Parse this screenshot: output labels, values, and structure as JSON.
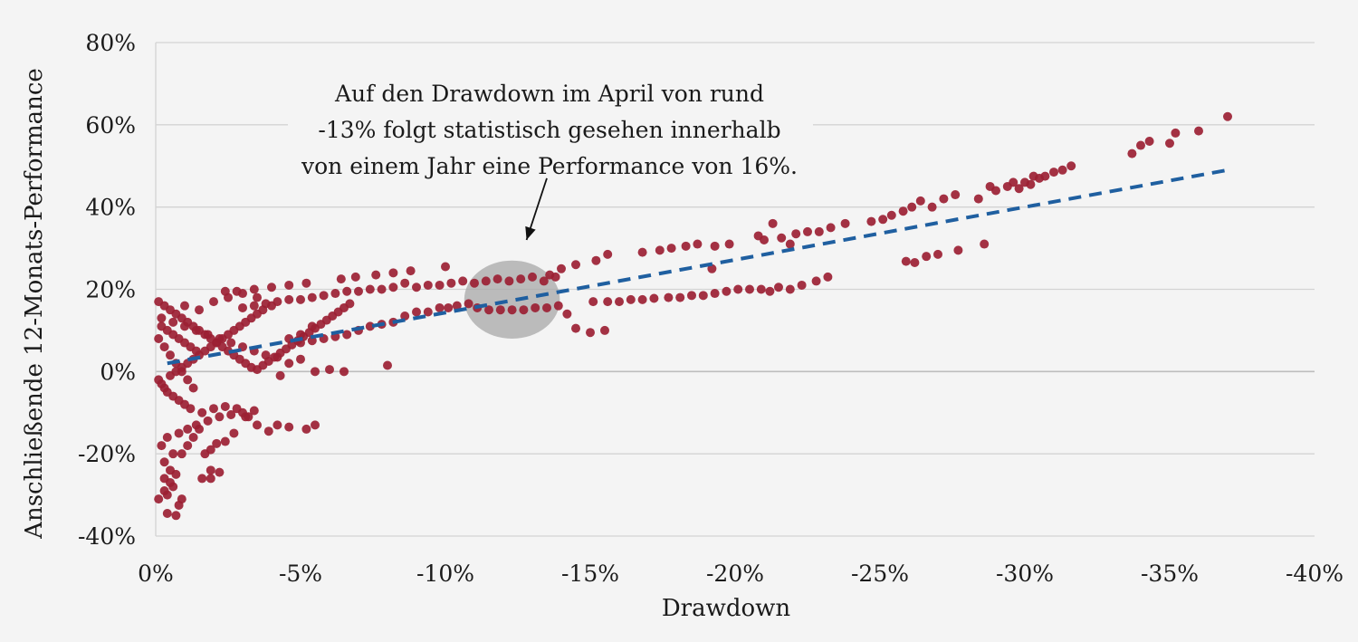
{
  "chart_data": {
    "type": "scatter",
    "xlabel": "Drawdown",
    "ylabel": "Anschließende 12-Monats-Performance",
    "xlim": [
      0,
      -40
    ],
    "ylim": [
      -40,
      80
    ],
    "x_ticks": [
      "0%",
      "-5%",
      "-10%",
      "-15%",
      "-20%",
      "-25%",
      "-30%",
      "-35%",
      "-40%"
    ],
    "y_ticks": [
      "80%",
      "60%",
      "40%",
      "20%",
      "0%",
      "-20%",
      "-40%"
    ],
    "grid": "horizontal",
    "point_color": "#9b1f33",
    "trend_color": "#1f5fa0",
    "highlight_color": "#a8a8a8",
    "trendline": {
      "x": [
        -0.4,
        -37
      ],
      "y": [
        2,
        49
      ]
    },
    "highlight": {
      "x_center": -12.3,
      "y_center": 17.5,
      "x_radius": 1.65,
      "y_radius": 9.5
    },
    "annotation": {
      "lines": [
        "Auf den Drawdown im April von rund",
        "-13% folgt statistisch gesehen innerhalb",
        "von einem Jahr eine Performance von 16%."
      ],
      "arrow_from": [
        -13.5,
        47
      ],
      "arrow_to": [
        -12.8,
        32
      ]
    },
    "series": [
      {
        "points": [
          [
            -37,
            62
          ],
          [
            -36,
            58.5
          ],
          [
            -35.2,
            58
          ],
          [
            -35,
            55.5
          ],
          [
            -34.3,
            56
          ],
          [
            -34,
            55
          ],
          [
            -33.7,
            53
          ],
          [
            -31.6,
            50
          ],
          [
            -31.3,
            49
          ],
          [
            -31,
            48.5
          ],
          [
            -30.7,
            47.5
          ],
          [
            -30.5,
            47
          ],
          [
            -30.3,
            47.5
          ],
          [
            -30.2,
            45.5
          ],
          [
            -30,
            46
          ],
          [
            -29.8,
            44.5
          ],
          [
            -29.6,
            46
          ],
          [
            -29.4,
            45
          ],
          [
            -29,
            44
          ],
          [
            -28.8,
            45
          ],
          [
            -28.4,
            42
          ],
          [
            -27.6,
            43
          ],
          [
            -27.2,
            42
          ],
          [
            -26.8,
            40
          ],
          [
            -26.4,
            41.5
          ],
          [
            -26.1,
            40
          ],
          [
            -25.8,
            39
          ],
          [
            -25.4,
            38
          ],
          [
            -25.1,
            37
          ],
          [
            -24.7,
            36.5
          ],
          [
            -23.8,
            36
          ],
          [
            -23.3,
            35
          ],
          [
            -22.9,
            34
          ],
          [
            -22.5,
            34
          ],
          [
            -22.1,
            33.5
          ],
          [
            -21.9,
            31
          ],
          [
            -21.6,
            32.5
          ],
          [
            -21.3,
            36
          ],
          [
            -21,
            32
          ],
          [
            -20.8,
            33
          ],
          [
            -28.6,
            31
          ],
          [
            -27.7,
            29.5
          ],
          [
            -27,
            28.5
          ],
          [
            -26.6,
            28
          ],
          [
            -26.2,
            26.5
          ],
          [
            -25.9,
            26.8
          ],
          [
            -23.2,
            23
          ],
          [
            -22.8,
            22
          ],
          [
            -22.3,
            21
          ],
          [
            -21.9,
            20
          ],
          [
            -21.5,
            20.5
          ],
          [
            -21.2,
            19.5
          ],
          [
            -20.9,
            20
          ],
          [
            -20.5,
            20
          ],
          [
            -20.1,
            20
          ],
          [
            -19.7,
            19.5
          ],
          [
            -19.3,
            19
          ],
          [
            -18.9,
            18.5
          ],
          [
            -18.5,
            18.5
          ],
          [
            -18.1,
            18
          ],
          [
            -17.7,
            18
          ],
          [
            -17.2,
            17.8
          ],
          [
            -16.8,
            17.5
          ],
          [
            -16.4,
            17.5
          ],
          [
            -16,
            17
          ],
          [
            -15.6,
            17
          ],
          [
            -15.1,
            17
          ],
          [
            -19.8,
            31
          ],
          [
            -19.3,
            30.5
          ],
          [
            -18.7,
            31
          ],
          [
            -18.3,
            30.5
          ],
          [
            -17.8,
            30
          ],
          [
            -17.4,
            29.5
          ],
          [
            -16.8,
            29
          ],
          [
            -19.2,
            25
          ],
          [
            -15.6,
            28.5
          ],
          [
            -15.2,
            27
          ],
          [
            -14.5,
            26
          ],
          [
            -14,
            25
          ],
          [
            -13.6,
            23.5
          ],
          [
            -15.5,
            10
          ],
          [
            -15,
            9.5
          ],
          [
            -14.5,
            10.5
          ],
          [
            -14.2,
            14
          ],
          [
            -13.9,
            16
          ],
          [
            -13.5,
            15.5
          ],
          [
            -13.1,
            15.5
          ],
          [
            -12.7,
            15
          ],
          [
            -12.3,
            15
          ],
          [
            -11.9,
            15
          ],
          [
            -11.5,
            15
          ],
          [
            -11.1,
            15.5
          ],
          [
            -10.8,
            16.5
          ],
          [
            -10.4,
            16
          ],
          [
            -10.1,
            15.5
          ],
          [
            -9.8,
            15.5
          ],
          [
            -9.4,
            14.5
          ],
          [
            -9,
            14.5
          ],
          [
            -8.6,
            13.5
          ],
          [
            -8.2,
            12
          ],
          [
            -7.8,
            11.5
          ],
          [
            -7.4,
            11
          ],
          [
            -7,
            10
          ],
          [
            -6.6,
            9
          ],
          [
            -6.2,
            8.5
          ],
          [
            -5.8,
            8
          ],
          [
            -5.4,
            7.5
          ],
          [
            -5,
            7
          ],
          [
            -13.8,
            23
          ],
          [
            -13.4,
            22
          ],
          [
            -13,
            23
          ],
          [
            -12.6,
            22.5
          ],
          [
            -12.2,
            22
          ],
          [
            -11.8,
            22.5
          ],
          [
            -11.4,
            22
          ],
          [
            -11,
            21.5
          ],
          [
            -10.6,
            22
          ],
          [
            -10.2,
            21.5
          ],
          [
            -9.8,
            21
          ],
          [
            -9.4,
            21
          ],
          [
            -9,
            20.5
          ],
          [
            -8.6,
            21.5
          ],
          [
            -8.2,
            20.5
          ],
          [
            -7.8,
            20
          ],
          [
            -7.4,
            20
          ],
          [
            -7,
            19.5
          ],
          [
            -6.6,
            19.5
          ],
          [
            -6.2,
            19
          ],
          [
            -5.8,
            18.5
          ],
          [
            -5.4,
            18
          ],
          [
            -5,
            17.5
          ],
          [
            -4.6,
            17.5
          ],
          [
            -4.2,
            17
          ],
          [
            -3.8,
            16.5
          ],
          [
            -3.4,
            16
          ],
          [
            -3,
            15.5
          ],
          [
            -10,
            25.5
          ],
          [
            -8.8,
            24.5
          ],
          [
            -8.2,
            24
          ],
          [
            -7.6,
            23.5
          ],
          [
            -6.9,
            23
          ],
          [
            -6.4,
            22.5
          ],
          [
            -5.2,
            21.5
          ],
          [
            -4.6,
            21
          ],
          [
            -4,
            20.5
          ],
          [
            -3.4,
            20
          ],
          [
            -2.8,
            19.5
          ],
          [
            -2.4,
            19.5
          ],
          [
            -8,
            1.5
          ],
          [
            -6.5,
            0
          ],
          [
            -6,
            0.5
          ],
          [
            -5.5,
            0
          ],
          [
            -5,
            3
          ],
          [
            -4.6,
            2
          ],
          [
            -4.3,
            -1
          ],
          [
            -5.5,
            -13
          ],
          [
            -5.2,
            -14
          ],
          [
            -4.6,
            -13.5
          ],
          [
            -4.2,
            -13
          ],
          [
            -3.9,
            -14.5
          ],
          [
            -3.5,
            -13
          ],
          [
            -3.1,
            -11
          ],
          [
            -2.7,
            -15
          ],
          [
            -2.4,
            -17
          ],
          [
            -2.1,
            -17.5
          ],
          [
            -1.9,
            -19
          ],
          [
            -1.7,
            -20
          ],
          [
            -1.9,
            -24
          ],
          [
            -2.2,
            -24.5
          ],
          [
            -1.9,
            -26
          ],
          [
            -1.6,
            -26
          ],
          [
            -0.9,
            -31
          ],
          [
            -0.8,
            -32.5
          ],
          [
            -0.7,
            -35
          ],
          [
            -0.4,
            -34.5
          ],
          [
            -0.4,
            -30
          ],
          [
            -0.6,
            -28
          ],
          [
            -0.3,
            -26
          ],
          [
            -0.5,
            -24
          ],
          [
            -0.3,
            -22
          ],
          [
            -0.6,
            -20
          ],
          [
            -0.2,
            -18
          ],
          [
            -0.4,
            -16
          ],
          [
            -0.8,
            -15
          ],
          [
            -1.1,
            -14
          ],
          [
            -1.4,
            -13
          ],
          [
            -1.8,
            -12
          ],
          [
            -2.2,
            -11
          ],
          [
            -2.6,
            -10.5
          ],
          [
            -3,
            -10
          ],
          [
            -3.4,
            -9.5
          ],
          [
            -1.2,
            -9
          ],
          [
            -1,
            -8
          ],
          [
            -0.8,
            -7
          ],
          [
            -0.6,
            -6
          ],
          [
            -0.4,
            -5
          ],
          [
            -0.3,
            -4
          ],
          [
            -0.2,
            -3
          ],
          [
            -0.1,
            -2
          ],
          [
            -0.5,
            -1
          ],
          [
            -0.7,
            0
          ],
          [
            -0.9,
            1
          ],
          [
            -1.1,
            2
          ],
          [
            -1.3,
            3
          ],
          [
            -1.5,
            4
          ],
          [
            -1.7,
            5
          ],
          [
            -1.9,
            6
          ],
          [
            -2.1,
            7
          ],
          [
            -2.3,
            8
          ],
          [
            -2.5,
            9
          ],
          [
            -2.7,
            10
          ],
          [
            -2.9,
            11
          ],
          [
            -3.1,
            12
          ],
          [
            -3.3,
            13
          ],
          [
            -3.5,
            14
          ],
          [
            -3.7,
            15
          ],
          [
            -0.1,
            17
          ],
          [
            -0.3,
            16
          ],
          [
            -0.5,
            15
          ],
          [
            -0.7,
            14
          ],
          [
            -0.9,
            13
          ],
          [
            -1.1,
            12
          ],
          [
            -1.3,
            11
          ],
          [
            -1.5,
            10
          ],
          [
            -1.7,
            9
          ],
          [
            -1.9,
            8
          ],
          [
            -2.1,
            7
          ],
          [
            -2.3,
            6
          ],
          [
            -2.5,
            5
          ],
          [
            -2.7,
            4
          ],
          [
            -2.9,
            3
          ],
          [
            -3.1,
            2
          ],
          [
            -3.3,
            1
          ],
          [
            -3.5,
            0.5
          ],
          [
            -3.7,
            1.5
          ],
          [
            -3.9,
            2.5
          ],
          [
            -4.1,
            3.5
          ],
          [
            -4.3,
            4.5
          ],
          [
            -4.5,
            5.5
          ],
          [
            -4.7,
            6.5
          ],
          [
            -4.9,
            7.5
          ],
          [
            -5.1,
            8.5
          ],
          [
            -5.3,
            9.5
          ],
          [
            -5.5,
            10.5
          ],
          [
            -5.7,
            11.5
          ],
          [
            -5.9,
            12.5
          ],
          [
            -6.1,
            13.5
          ],
          [
            -6.3,
            14.5
          ],
          [
            -6.5,
            15.5
          ],
          [
            -6.7,
            16.5
          ],
          [
            -0.2,
            11
          ],
          [
            -0.4,
            10
          ],
          [
            -0.6,
            9
          ],
          [
            -0.8,
            8
          ],
          [
            -1,
            7
          ],
          [
            -1.2,
            6
          ],
          [
            -1.4,
            5
          ],
          [
            -0.1,
            8
          ],
          [
            -0.3,
            6
          ],
          [
            -0.5,
            4
          ],
          [
            -0.7,
            2
          ],
          [
            -0.9,
            0
          ],
          [
            -1.1,
            -2
          ],
          [
            -1.3,
            -4
          ],
          [
            -0.2,
            13
          ],
          [
            -0.6,
            12
          ],
          [
            -1,
            11
          ],
          [
            -1.4,
            10
          ],
          [
            -1.8,
            9
          ],
          [
            -2.2,
            8
          ],
          [
            -2.6,
            7
          ],
          [
            -3,
            6
          ],
          [
            -3.4,
            5
          ],
          [
            -3.8,
            4
          ],
          [
            -4.2,
            3.5
          ],
          [
            -4.6,
            8
          ],
          [
            -5,
            9
          ],
          [
            -5.4,
            11
          ],
          [
            -1,
            16
          ],
          [
            -1.5,
            15
          ],
          [
            -2,
            17
          ],
          [
            -2.5,
            18
          ],
          [
            -3,
            19
          ],
          [
            -3.5,
            18
          ],
          [
            -4,
            16
          ],
          [
            -1.6,
            -10
          ],
          [
            -2,
            -9
          ],
          [
            -2.4,
            -8.5
          ],
          [
            -2.8,
            -9
          ],
          [
            -3.2,
            -11
          ],
          [
            -0.9,
            -20
          ],
          [
            -1.1,
            -18
          ],
          [
            -1.3,
            -16
          ],
          [
            -1.5,
            -14
          ],
          [
            -0.7,
            -25
          ],
          [
            -0.5,
            -27
          ],
          [
            -0.3,
            -29
          ],
          [
            -0.1,
            -31
          ]
        ]
      }
    ]
  }
}
